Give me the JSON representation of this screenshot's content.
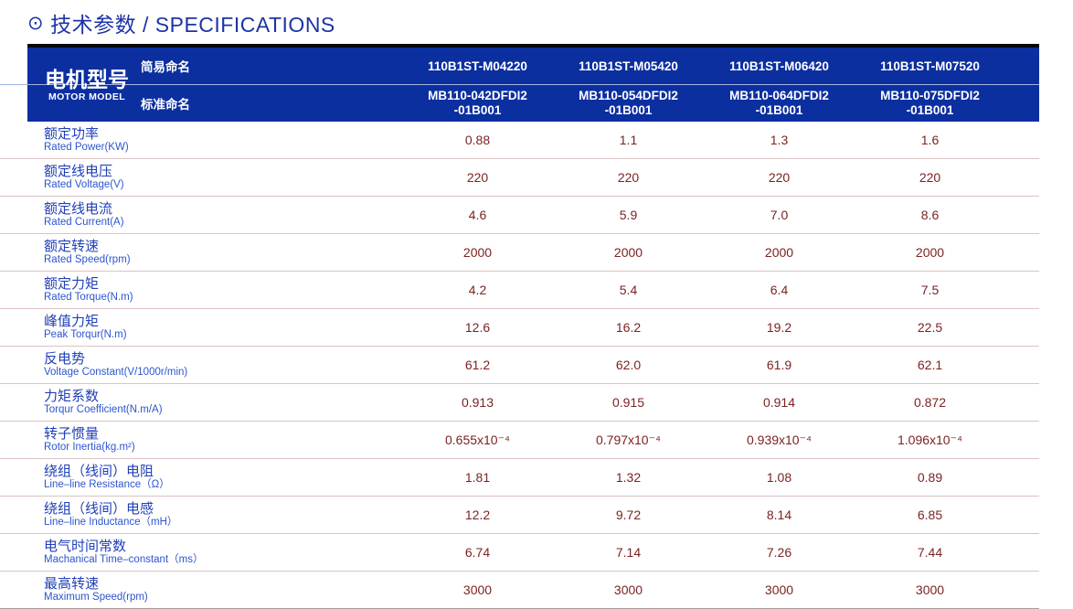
{
  "page_title": {
    "icon": "⊙",
    "text": "技术参数 / SPECIFICATIONS"
  },
  "colors": {
    "header_bg": "#0c2fa0",
    "header_top_bar": "#05070d",
    "title_color": "#1d33a6",
    "label_zh": "#2140b8",
    "label_en": "#2c55cf",
    "value_color": "#7c2222",
    "row_line": "#dcc3c3",
    "divider": "#9fb2e2",
    "last_line": "#a99c9c"
  },
  "motor_model": {
    "zh": "电机型号",
    "en": "MOTOR MODEL",
    "simple_name_label": "简易命名",
    "standard_name_label": "标准命名"
  },
  "columns": [
    {
      "simple": "110B1ST-M04220",
      "standard": "MB110-042DFDI2\n-01B001"
    },
    {
      "simple": "110B1ST-M05420",
      "standard": "MB110-054DFDI2\n-01B001"
    },
    {
      "simple": "110B1ST-M06420",
      "standard": "MB110-064DFDI2\n-01B001"
    },
    {
      "simple": "110B1ST-M07520",
      "standard": "MB110-075DFDI2\n-01B001"
    }
  ],
  "rows": [
    {
      "zh": "额定功率",
      "en": "Rated Power(KW)",
      "values": [
        "0.88",
        "1.1",
        "1.3",
        "1.6"
      ]
    },
    {
      "zh": "额定线电压",
      "en": "Rated Voltage(V)",
      "values": [
        "220",
        "220",
        "220",
        "220"
      ]
    },
    {
      "zh": "额定线电流",
      "en": "Rated Current(A)",
      "values": [
        "4.6",
        "5.9",
        "7.0",
        "8.6"
      ]
    },
    {
      "zh": "额定转速",
      "en": "Rated Speed(rpm)",
      "values": [
        "2000",
        "2000",
        "2000",
        "2000"
      ]
    },
    {
      "zh": "额定力矩",
      "en": "Rated Torque(N.m)",
      "values": [
        "4.2",
        "5.4",
        "6.4",
        "7.5"
      ]
    },
    {
      "zh": "峰值力矩",
      "en": "Peak Torqur(N.m)",
      "values": [
        "12.6",
        "16.2",
        "19.2",
        "22.5"
      ]
    },
    {
      "zh": "反电势",
      "en": "Voltage Constant(V/1000r/min)",
      "values": [
        "61.2",
        "62.0",
        "61.9",
        "62.1"
      ]
    },
    {
      "zh": "力矩系数",
      "en": "Torqur Coefficient(N.m/A)",
      "values": [
        "0.913",
        "0.915",
        "0.914",
        "0.872"
      ]
    },
    {
      "zh": "转子惯量",
      "en": "Rotor Inertia(kg.m²)",
      "values": [
        "0.655x10⁻⁴",
        "0.797x10⁻⁴",
        "0.939x10⁻⁴",
        "1.096x10⁻⁴"
      ]
    },
    {
      "zh": "绕组（线间）电阻",
      "en": "Line–line Resistance（Ω）",
      "values": [
        "1.81",
        "1.32",
        "1.08",
        "0.89"
      ]
    },
    {
      "zh": "绕组（线间）电感",
      "en": "Line–line Inductance（mH）",
      "values": [
        "12.2",
        "9.72",
        "8.14",
        "6.85"
      ]
    },
    {
      "zh": "电气时间常数",
      "en": "Machanical Time–constant（ms）",
      "values": [
        "6.74",
        "7.14",
        "7.26",
        "7.44"
      ]
    },
    {
      "zh": "最高转速",
      "en": "Maximum Speed(rpm)",
      "values": [
        "3000",
        "3000",
        "3000",
        "3000"
      ]
    }
  ]
}
